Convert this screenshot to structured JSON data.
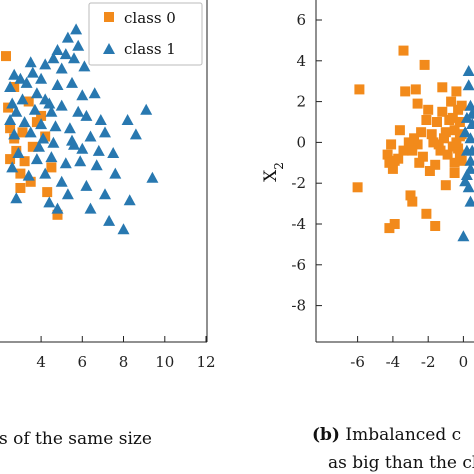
{
  "chart_data": [
    {
      "type": "scatter",
      "xticks": [
        "4",
        "6",
        "8",
        "10",
        "12"
      ],
      "xlim": [
        2.3,
        12
      ],
      "ylim": [
        -9.0,
        6.0
      ],
      "legend": {
        "placement": "top-right"
      },
      "caption": "s of the same size",
      "series": [
        {
          "name": "class 0",
          "color": "#f28a1b",
          "marker": "square",
          "points": [
            [
              2.3,
              4.1
            ],
            [
              2.4,
              1.6
            ],
            [
              2.5,
              0.6
            ],
            [
              2.7,
              0.1
            ],
            [
              2.5,
              -0.9
            ],
            [
              2.8,
              -0.5
            ],
            [
              3.0,
              -2.3
            ],
            [
              3.5,
              -2.0
            ],
            [
              3.0,
              -1.6
            ],
            [
              3.2,
              -1.0
            ],
            [
              3.6,
              -0.3
            ],
            [
              3.8,
              0.9
            ],
            [
              4.0,
              1.2
            ],
            [
              4.2,
              0.2
            ],
            [
              3.4,
              1.9
            ],
            [
              4.8,
              -3.6
            ],
            [
              4.3,
              -2.5
            ],
            [
              4.5,
              -1.3
            ],
            [
              3.1,
              0.4
            ],
            [
              2.7,
              2.6
            ]
          ]
        },
        {
          "name": "class 1",
          "color": "#2878b0",
          "marker": "triangle",
          "points": [
            [
              5.7,
              5.4
            ],
            [
              5.3,
              5.0
            ],
            [
              5.8,
              4.6
            ],
            [
              5.2,
              4.2
            ],
            [
              5.6,
              4.0
            ],
            [
              4.8,
              4.4
            ],
            [
              4.6,
              4.0
            ],
            [
              6.1,
              3.6
            ],
            [
              5.0,
              3.5
            ],
            [
              4.2,
              3.7
            ],
            [
              3.5,
              3.8
            ],
            [
              2.7,
              3.2
            ],
            [
              3.0,
              3.0
            ],
            [
              4.0,
              3.0
            ],
            [
              3.3,
              2.8
            ],
            [
              2.5,
              2.6
            ],
            [
              4.8,
              2.7
            ],
            [
              5.5,
              2.8
            ],
            [
              3.8,
              2.3
            ],
            [
              4.2,
              2.0
            ],
            [
              3.1,
              2.0
            ],
            [
              2.6,
              1.8
            ],
            [
              6.0,
              2.2
            ],
            [
              6.6,
              2.3
            ],
            [
              5.0,
              1.7
            ],
            [
              2.8,
              1.4
            ],
            [
              3.7,
              1.5
            ],
            [
              4.5,
              1.4
            ],
            [
              5.8,
              1.4
            ],
            [
              6.2,
              1.2
            ],
            [
              2.5,
              1.0
            ],
            [
              3.2,
              0.9
            ],
            [
              4.0,
              0.8
            ],
            [
              4.7,
              0.7
            ],
            [
              5.4,
              0.6
            ],
            [
              7.1,
              0.4
            ],
            [
              8.2,
              1.0
            ],
            [
              9.1,
              1.5
            ],
            [
              2.7,
              0.3
            ],
            [
              3.5,
              0.4
            ],
            [
              6.4,
              0.2
            ],
            [
              7.5,
              -0.6
            ],
            [
              4.1,
              0.1
            ],
            [
              4.6,
              -0.1
            ],
            [
              5.6,
              -0.2
            ],
            [
              6.0,
              -0.4
            ],
            [
              6.8,
              -0.5
            ],
            [
              2.9,
              -0.6
            ],
            [
              3.8,
              -0.9
            ],
            [
              4.5,
              -0.8
            ],
            [
              5.2,
              -1.1
            ],
            [
              5.9,
              -1.0
            ],
            [
              6.7,
              -1.2
            ],
            [
              2.6,
              -1.3
            ],
            [
              9.4,
              -1.8
            ],
            [
              3.4,
              -1.7
            ],
            [
              4.2,
              -1.6
            ],
            [
              5.0,
              -2.0
            ],
            [
              6.2,
              -2.2
            ],
            [
              7.1,
              -2.6
            ],
            [
              8.3,
              -2.9
            ],
            [
              2.8,
              -2.8
            ],
            [
              4.4,
              -3.0
            ],
            [
              5.3,
              -2.6
            ],
            [
              6.4,
              -3.3
            ],
            [
              7.3,
              -3.9
            ],
            [
              8.0,
              -4.3
            ],
            [
              4.8,
              -3.3
            ],
            [
              8.6,
              0.3
            ],
            [
              3.6,
              3.3
            ],
            [
              4.4,
              1.8
            ],
            [
              3.9,
              -0.3
            ],
            [
              5.5,
              0.0
            ],
            [
              6.9,
              1.0
            ],
            [
              7.6,
              -1.6
            ]
          ]
        }
      ]
    },
    {
      "type": "scatter",
      "ylabel": "X",
      "ylabel_subscript": "2",
      "xticks": [
        "-6",
        "-4",
        "-2",
        "0"
      ],
      "yticks": [
        "6",
        "4",
        "2",
        "0",
        "-2",
        "-4",
        "-6",
        "-8"
      ],
      "xlim": [
        -7.0,
        0.6
      ],
      "ylim": [
        -9.0,
        6.0
      ],
      "caption_bold": "(b)",
      "caption_lines": [
        "Imbalanced c",
        "as big than the cl"
      ],
      "series": [
        {
          "name": "class 0",
          "color": "#f28a1b",
          "marker": "square",
          "points": [
            [
              -5.9,
              2.6
            ],
            [
              -3.4,
              4.5
            ],
            [
              -3.3,
              2.5
            ],
            [
              -2.7,
              2.6
            ],
            [
              -2.2,
              3.8
            ],
            [
              -1.2,
              2.7
            ],
            [
              -0.4,
              2.5
            ],
            [
              -6.0,
              -2.2
            ],
            [
              -4.2,
              -4.2
            ],
            [
              -3.9,
              -4.0
            ],
            [
              -2.9,
              -2.9
            ],
            [
              -2.1,
              -3.5
            ],
            [
              -1.6,
              -4.1
            ],
            [
              -1.0,
              -2.1
            ],
            [
              -0.5,
              -1.5
            ],
            [
              -0.3,
              -0.3
            ],
            [
              -0.2,
              0.3
            ],
            [
              -0.5,
              0.6
            ],
            [
              -0.8,
              1.1
            ],
            [
              -1.1,
              0.2
            ],
            [
              -1.5,
              1.0
            ],
            [
              -1.8,
              0.4
            ],
            [
              -2.1,
              1.1
            ],
            [
              -2.4,
              0.5
            ],
            [
              -2.6,
              -0.1
            ],
            [
              -2.8,
              0.2
            ],
            [
              -3.1,
              0.0
            ],
            [
              -3.4,
              -0.4
            ],
            [
              -3.7,
              -0.8
            ],
            [
              -4.0,
              -1.3
            ],
            [
              -4.3,
              -0.6
            ],
            [
              -4.1,
              -0.1
            ],
            [
              -3.6,
              0.6
            ],
            [
              -2.9,
              -0.4
            ],
            [
              -2.0,
              1.6
            ],
            [
              -1.4,
              -0.1
            ],
            [
              -0.9,
              -0.6
            ],
            [
              -0.6,
              -0.2
            ],
            [
              -1.2,
              1.5
            ],
            [
              -0.2,
              1.0
            ],
            [
              -0.1,
              -0.9
            ],
            [
              -0.7,
              2.0
            ],
            [
              -0.3,
              1.6
            ],
            [
              -2.5,
              -1.0
            ],
            [
              -3.9,
              -0.9
            ],
            [
              -1.6,
              -1.1
            ],
            [
              -2.3,
              -0.7
            ],
            [
              -1.9,
              -1.4
            ],
            [
              -0.4,
              0.0
            ],
            [
              -1.0,
              0.5
            ],
            [
              -4.2,
              -1.0
            ],
            [
              -1.3,
              -0.4
            ],
            [
              -0.1,
              1.8
            ],
            [
              -2.6,
              1.9
            ],
            [
              -3.0,
              -2.6
            ],
            [
              -0.2,
              -0.6
            ],
            [
              -0.6,
              1.2
            ],
            [
              -1.7,
              0.0
            ],
            [
              -0.1,
              0.4
            ],
            [
              -0.5,
              -1.0
            ]
          ]
        },
        {
          "name": "class 1",
          "color": "#2878b0",
          "marker": "triangle",
          "points": [
            [
              0.3,
              2.8
            ],
            [
              0.4,
              1.8
            ],
            [
              0.2,
              1.2
            ],
            [
              0.5,
              0.9
            ],
            [
              0.4,
              0.2
            ],
            [
              0.5,
              -0.4
            ],
            [
              0.2,
              -1.6
            ],
            [
              0.4,
              -1.3
            ],
            [
              0.3,
              -2.2
            ],
            [
              0.0,
              -4.6
            ],
            [
              0.4,
              -0.9
            ],
            [
              0.1,
              0.5
            ],
            [
              0.2,
              -0.4
            ],
            [
              0.5,
              1.4
            ],
            [
              0.3,
              3.5
            ],
            [
              0.1,
              -1.9
            ],
            [
              0.4,
              -2.9
            ]
          ]
        }
      ]
    }
  ]
}
